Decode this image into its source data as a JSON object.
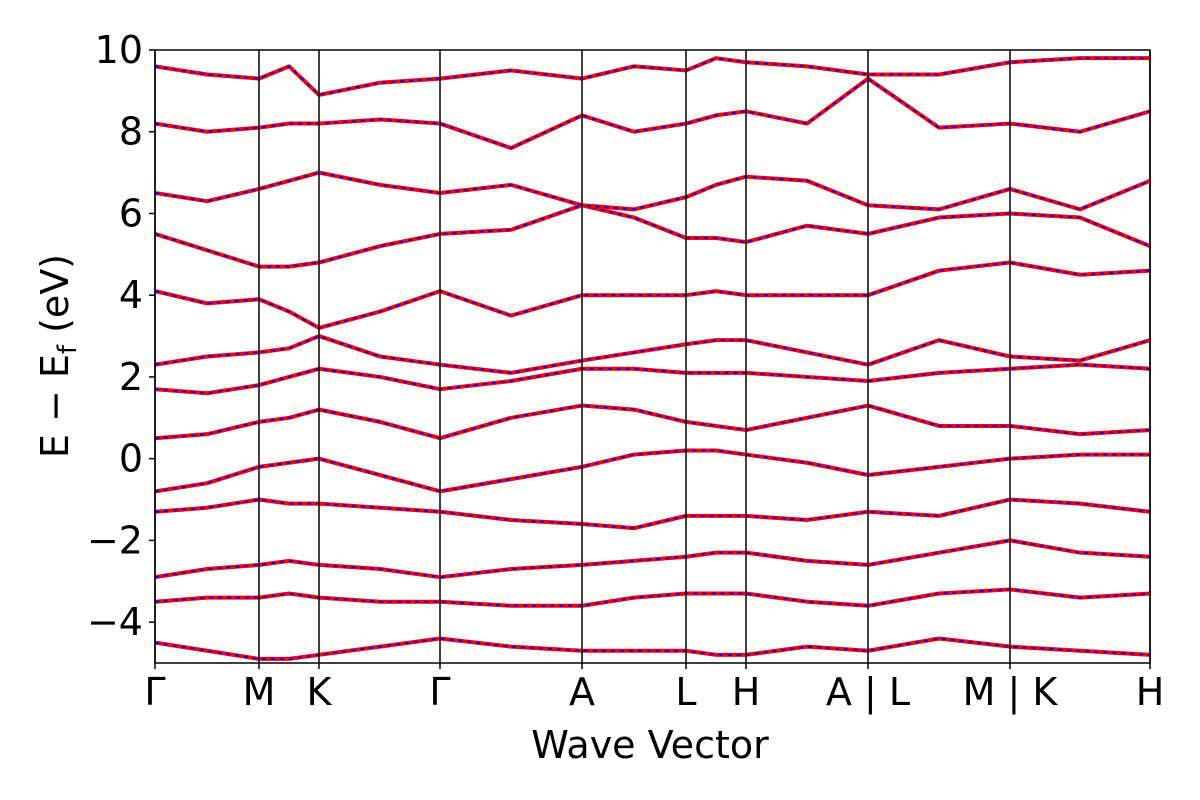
{
  "chart_data": {
    "type": "line",
    "y_label_parts": [
      "E − E",
      "f",
      " (eV)"
    ],
    "x_label": "Wave Vector",
    "xlim": [
      0,
      995
    ],
    "xticks": [
      {
        "value": 0,
        "label": "Γ"
      },
      {
        "value": 104,
        "label": "M"
      },
      {
        "value": 164,
        "label": "K"
      },
      {
        "value": 285,
        "label": "Γ"
      },
      {
        "value": 427,
        "label": "A"
      },
      {
        "value": 531,
        "label": "L"
      },
      {
        "value": 591,
        "label": "H"
      },
      {
        "value": 713,
        "label": "A | L"
      },
      {
        "value": 855,
        "label": "M | K"
      },
      {
        "value": 995,
        "label": "H"
      }
    ],
    "ylim": [
      -5,
      10
    ],
    "yticks": [
      {
        "value": -4,
        "label": "−4"
      },
      {
        "value": -2,
        "label": "−2"
      },
      0,
      2,
      4,
      6,
      8,
      10
    ],
    "x_grid": true,
    "overlay_color": "#0000ff",
    "overlay_style": "dashed",
    "x": [
      0,
      52,
      104,
      134,
      164,
      225,
      285,
      356,
      427,
      479,
      531,
      561,
      591,
      652,
      713,
      784,
      855,
      925,
      995
    ],
    "series": [
      {
        "color": "#ff0000",
        "values": [
          -4.5,
          -4.7,
          -4.9,
          -4.9,
          -4.8,
          -4.6,
          -4.4,
          -4.6,
          -4.7,
          -4.7,
          -4.7,
          -4.8,
          -4.8,
          -4.6,
          -4.7,
          -4.4,
          -4.6,
          -4.7,
          -4.8
        ]
      },
      {
        "color": "#ff0000",
        "values": [
          -3.5,
          -3.4,
          -3.4,
          -3.3,
          -3.4,
          -3.5,
          -3.5,
          -3.6,
          -3.6,
          -3.4,
          -3.3,
          -3.3,
          -3.3,
          -3.5,
          -3.6,
          -3.3,
          -3.2,
          -3.4,
          -3.3
        ]
      },
      {
        "color": "#ff0000",
        "values": [
          -2.9,
          -2.7,
          -2.6,
          -2.5,
          -2.6,
          -2.7,
          -2.9,
          -2.7,
          -2.6,
          -2.5,
          -2.4,
          -2.3,
          -2.3,
          -2.5,
          -2.6,
          -2.3,
          -2.0,
          -2.3,
          -2.4
        ]
      },
      {
        "color": "#ff0000",
        "values": [
          -1.3,
          -1.2,
          -1.0,
          -1.1,
          -1.1,
          -1.2,
          -1.3,
          -1.5,
          -1.6,
          -1.7,
          -1.4,
          -1.4,
          -1.4,
          -1.5,
          -1.3,
          -1.4,
          -1.0,
          -1.1,
          -1.3
        ]
      },
      {
        "color": "#ff0000",
        "values": [
          -0.8,
          -0.6,
          -0.2,
          -0.1,
          0.0,
          -0.4,
          -0.8,
          -0.5,
          -0.2,
          0.1,
          0.2,
          0.2,
          0.1,
          -0.1,
          -0.4,
          -0.2,
          0.0,
          0.1,
          0.1
        ]
      },
      {
        "color": "#ff0000",
        "values": [
          0.5,
          0.6,
          0.9,
          1.0,
          1.2,
          0.9,
          0.5,
          1.0,
          1.3,
          1.2,
          0.9,
          0.8,
          0.7,
          1.0,
          1.3,
          0.8,
          0.8,
          0.6,
          0.7
        ]
      },
      {
        "color": "#ff0000",
        "values": [
          1.7,
          1.6,
          1.8,
          2.0,
          2.2,
          2.0,
          1.7,
          1.9,
          2.2,
          2.2,
          2.1,
          2.1,
          2.1,
          2.0,
          1.9,
          2.1,
          2.2,
          2.3,
          2.2
        ]
      },
      {
        "color": "#ff0000",
        "values": [
          2.3,
          2.5,
          2.6,
          2.7,
          3.0,
          2.5,
          2.3,
          2.1,
          2.4,
          2.6,
          2.8,
          2.9,
          2.9,
          2.6,
          2.3,
          2.9,
          2.5,
          2.4,
          2.9
        ]
      },
      {
        "color": "#ff0000",
        "values": [
          4.1,
          3.8,
          3.9,
          3.6,
          3.2,
          3.6,
          4.1,
          3.5,
          4.0,
          4.0,
          4.0,
          4.1,
          4.0,
          4.0,
          4.0,
          4.6,
          4.8,
          4.5,
          4.6
        ]
      },
      {
        "color": "#ff0000",
        "values": [
          5.5,
          5.1,
          4.7,
          4.7,
          4.8,
          5.2,
          5.5,
          5.6,
          6.2,
          5.9,
          5.4,
          5.4,
          5.3,
          5.7,
          5.5,
          5.9,
          6.0,
          5.9,
          5.2
        ]
      },
      {
        "color": "#ff0000",
        "values": [
          6.5,
          6.3,
          6.6,
          6.8,
          7.0,
          6.7,
          6.5,
          6.7,
          6.2,
          6.1,
          6.4,
          6.7,
          6.9,
          6.8,
          6.2,
          6.1,
          6.6,
          6.1,
          6.8
        ]
      },
      {
        "color": "#ff0000",
        "values": [
          8.2,
          8.0,
          8.1,
          8.2,
          8.2,
          8.3,
          8.2,
          7.6,
          8.4,
          8.0,
          8.2,
          8.4,
          8.5,
          8.2,
          9.3,
          8.1,
          8.2,
          8.0,
          8.5
        ]
      },
      {
        "color": "#ff0000",
        "values": [
          9.6,
          9.4,
          9.3,
          9.6,
          8.9,
          9.2,
          9.3,
          9.5,
          9.3,
          9.6,
          9.5,
          9.8,
          9.7,
          9.6,
          9.4,
          9.4,
          9.7,
          9.8,
          9.8
        ]
      }
    ]
  }
}
